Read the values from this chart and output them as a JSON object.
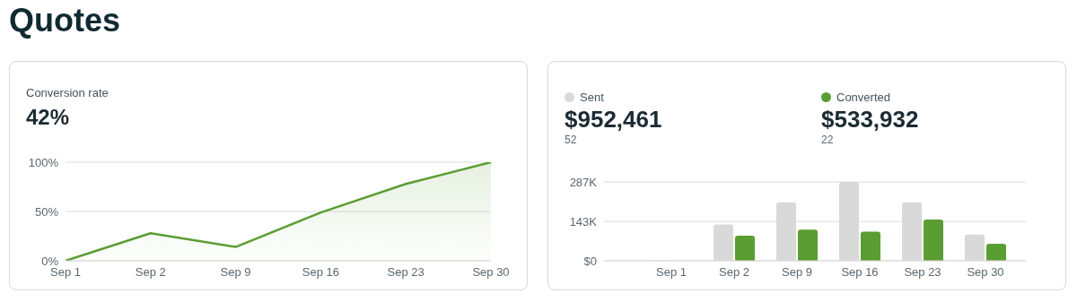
{
  "chart_data": [
    {
      "type": "area",
      "title": "Quotes",
      "subtitle": "Conversion rate",
      "annotations": [
        "42%"
      ],
      "categories": [
        "Sep 1",
        "Sep 2",
        "Sep 9",
        "Sep 16",
        "Sep 23",
        "Sep 30"
      ],
      "series": [
        {
          "color": "#5a9e32",
          "values": [
            0,
            28,
            14,
            49,
            78,
            100
          ]
        }
      ],
      "ylim": [
        0,
        100
      ],
      "yticks": [
        {
          "value": 0,
          "label": "0%"
        },
        {
          "value": 50,
          "label": "50%"
        },
        {
          "value": 100,
          "label": "100%"
        }
      ],
      "grid": "y",
      "marker": "none"
    },
    {
      "type": "bar",
      "annotations": [
        "$952,461",
        "52",
        "$533,932",
        "22"
      ],
      "categories": [
        "Sep 1",
        "Sep 2",
        "Sep 9",
        "Sep 16",
        "Sep 23",
        "Sep 30"
      ],
      "series": [
        {
          "name": "Sent",
          "color": "#d9d9d9",
          "values": [
            1,
            132,
            213,
            287,
            213,
            95
          ]
        },
        {
          "name": "Converted",
          "color": "#5a9e32",
          "values": [
            0,
            91,
            113,
            106,
            150,
            62
          ]
        }
      ],
      "ylim": [
        0,
        287
      ],
      "yticks": [
        {
          "value": 0,
          "label": "$0"
        },
        {
          "value": 143,
          "label": "143K"
        },
        {
          "value": 287,
          "label": "287K"
        }
      ],
      "grid": "y",
      "legend": "top left"
    }
  ]
}
